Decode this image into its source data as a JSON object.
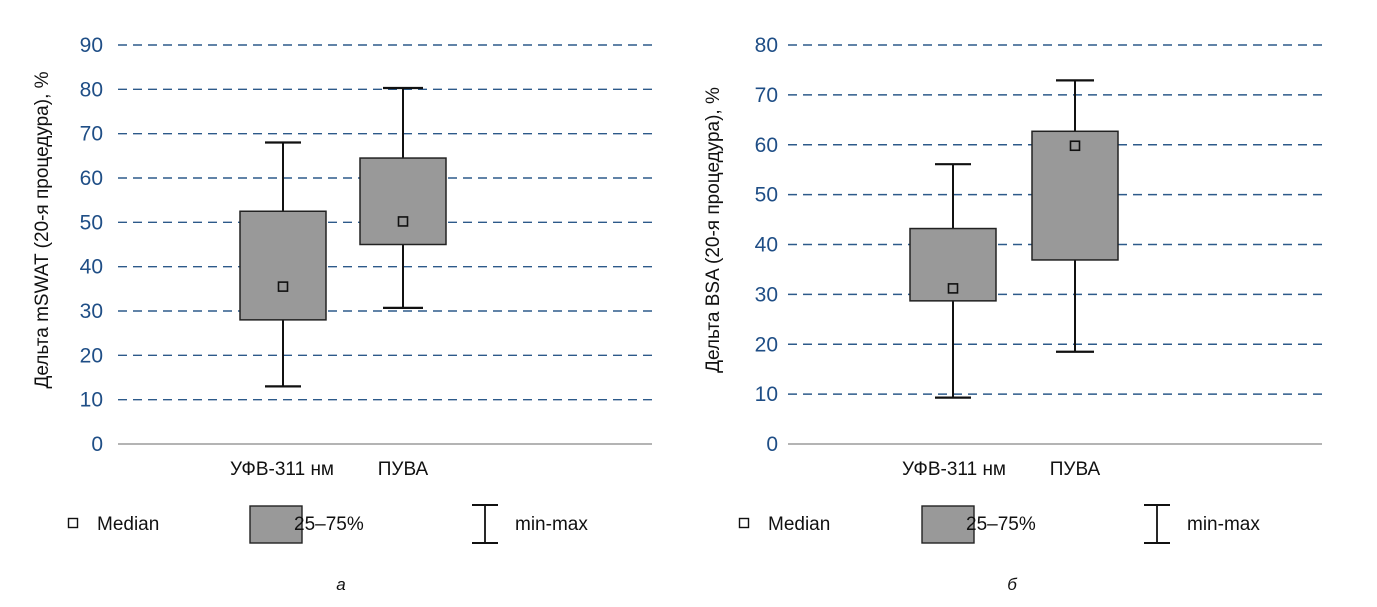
{
  "chart_data": [
    {
      "type": "box",
      "panel_label": "а",
      "ylabel": "Дельта mSWAT (20-я процедура), %",
      "xlabel": "",
      "ylim": [
        0,
        90
      ],
      "yticks": [
        0,
        10,
        20,
        30,
        40,
        50,
        60,
        70,
        80,
        90
      ],
      "grid": true,
      "categories": [
        "УФВ-311 нм",
        "ПУВА"
      ],
      "series": [
        {
          "name": "УФВ-311 нм",
          "min": 13,
          "q1": 28,
          "median": 35.5,
          "q3": 52.5,
          "max": 68
        },
        {
          "name": "ПУВА",
          "min": 30.7,
          "q1": 45,
          "median": 50.2,
          "q3": 64.5,
          "max": 80.3
        }
      ],
      "legend": {
        "placement": "bottom",
        "items": [
          "Median",
          "25–75%",
          "min-max"
        ]
      }
    },
    {
      "type": "box",
      "panel_label": "б",
      "ylabel": "Дельта BSA (20-я процедура), %",
      "xlabel": "",
      "ylim": [
        0,
        80
      ],
      "yticks": [
        0,
        10,
        20,
        30,
        40,
        50,
        60,
        70,
        80
      ],
      "grid": true,
      "categories": [
        "УФВ-311 нм",
        "ПУВА"
      ],
      "series": [
        {
          "name": "УФВ-311 нм",
          "min": 9.3,
          "q1": 28.7,
          "median": 31.2,
          "q3": 43.2,
          "max": 56.1
        },
        {
          "name": "ПУВА",
          "min": 18.5,
          "q1": 36.9,
          "median": 59.8,
          "q3": 62.7,
          "max": 72.9
        }
      ],
      "legend": {
        "placement": "bottom",
        "items": [
          "Median",
          "25–75%",
          "min-max"
        ]
      }
    }
  ],
  "colors": {
    "tick": "#1f4e86",
    "grid": "#2d5a8a",
    "box": "#999999",
    "axis": "#888888"
  }
}
